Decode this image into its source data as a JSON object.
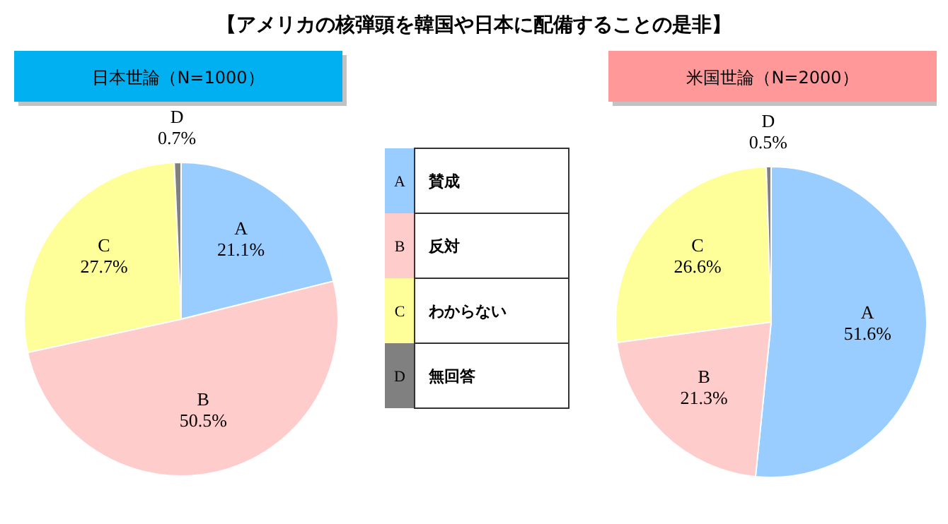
{
  "chart_data": [
    {
      "type": "pie",
      "title": "日本世論（N=1000）",
      "categories": [
        "A",
        "B",
        "C",
        "D"
      ],
      "values": [
        21.1,
        50.5,
        27.7,
        0.7
      ],
      "value_labels": [
        "21.1%",
        "50.5%",
        "27.7%",
        "0.7%"
      ],
      "colors": [
        "#99ccff",
        "#ffcccc",
        "#ffff99",
        "#808080"
      ]
    },
    {
      "type": "other",
      "title": "【アメリカの核弾頭を韓国や日本に配備することの是非】",
      "annotations": [
        "A",
        "賛成",
        "B",
        "反対",
        "C",
        "わからない",
        "D",
        "無回答"
      ]
    },
    {
      "type": "pie",
      "title": "米国世論（N=2000）",
      "categories": [
        "A",
        "B",
        "C",
        "D"
      ],
      "values": [
        51.6,
        21.3,
        26.6,
        0.5
      ],
      "value_labels": [
        "51.6%",
        "21.3%",
        "26.6%",
        "0.5%"
      ],
      "colors": [
        "#99ccff",
        "#ffcccc",
        "#ffff99",
        "#808080"
      ]
    }
  ]
}
